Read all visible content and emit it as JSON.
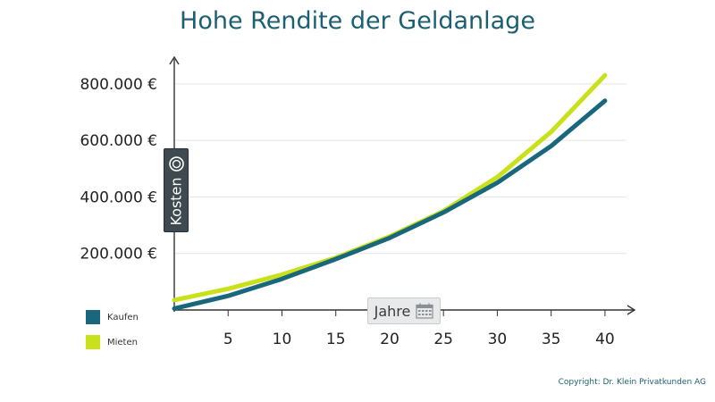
{
  "title": "Hohe Rendite der Geldanlage",
  "copyright": "Copyright: Dr. Klein Privatkunden AG",
  "colors": {
    "title": "#1d5f72",
    "kaufen": "#19677c",
    "mieten": "#c9e11a",
    "axis": "#333333",
    "grid": "#e3e3e3"
  },
  "icons": {
    "y_badge": "coin-icon",
    "x_badge": "calendar-icon"
  },
  "chart_data": {
    "type": "line",
    "title": "Hohe Rendite der Geldanlage",
    "xlabel": "Jahre",
    "ylabel": "Kosten",
    "x": [
      0,
      5,
      10,
      15,
      20,
      25,
      30,
      35,
      40
    ],
    "xticks": [
      5,
      10,
      15,
      20,
      25,
      30,
      35,
      40
    ],
    "xticklabels": [
      "5",
      "10",
      "15",
      "20",
      "25",
      "30",
      "35",
      "40"
    ],
    "yticks": [
      200000,
      400000,
      600000,
      800000
    ],
    "yticklabels": [
      "200.000 €",
      "400.000 €",
      "600.000 €",
      "800.000 €"
    ],
    "xlim": [
      0,
      42
    ],
    "ylim": [
      0,
      850000
    ],
    "grid": true,
    "legend_position": "bottom-left",
    "series": [
      {
        "name": "Kaufen",
        "color": "#19677c",
        "values": [
          5000,
          50000,
          110000,
          180000,
          255000,
          345000,
          450000,
          580000,
          740000
        ]
      },
      {
        "name": "Mieten",
        "color": "#c9e11a",
        "values": [
          35000,
          75000,
          125000,
          185000,
          260000,
          350000,
          470000,
          630000,
          830000
        ]
      }
    ]
  }
}
